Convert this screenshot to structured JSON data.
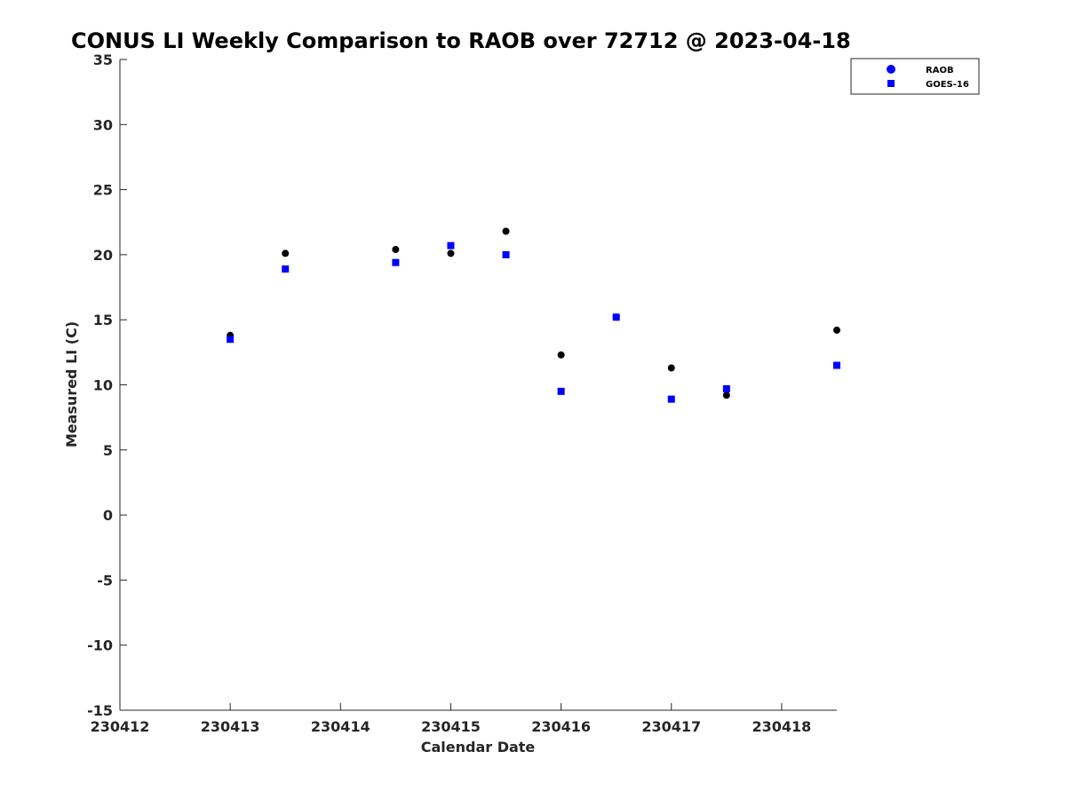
{
  "chart_data": {
    "type": "scatter",
    "title": "CONUS LI Weekly Comparison to RAOB over 72712 @ 2023-04-18",
    "xlabel": "Calendar Date",
    "ylabel": "Measured LI (C)",
    "xlim": [
      230412,
      230418.5
    ],
    "ylim": [
      -15,
      35
    ],
    "x_ticks": [
      230412,
      230413,
      230414,
      230415,
      230416,
      230417,
      230418
    ],
    "x_tick_labels": [
      "230412",
      "230413",
      "230414",
      "230415",
      "230416",
      "230417",
      "230418"
    ],
    "y_ticks": [
      35,
      30,
      25,
      20,
      15,
      10,
      5,
      0,
      -5,
      -10,
      -15
    ],
    "y_tick_labels": [
      "35",
      "30",
      "25",
      "20",
      "15",
      "10",
      "5",
      "0",
      "-5",
      "-10",
      "-15"
    ],
    "grid": false,
    "legend_position": "top-right",
    "series": [
      {
        "name": "RAOB",
        "marker": "circle",
        "color": "#000000",
        "legend_color": "#0000ff",
        "points": [
          {
            "x": 230413.0,
            "y": 13.8
          },
          {
            "x": 230413.5,
            "y": 20.1
          },
          {
            "x": 230414.5,
            "y": 20.4
          },
          {
            "x": 230415.0,
            "y": 20.1
          },
          {
            "x": 230415.5,
            "y": 21.8
          },
          {
            "x": 230416.0,
            "y": 12.3
          },
          {
            "x": 230416.5,
            "y": 15.2
          },
          {
            "x": 230417.0,
            "y": 11.3
          },
          {
            "x": 230417.5,
            "y": 9.2
          },
          {
            "x": 230418.5,
            "y": 14.2
          }
        ]
      },
      {
        "name": "GOES-16",
        "marker": "square",
        "color": "#0000ff",
        "legend_color": "#0000ff",
        "points": [
          {
            "x": 230413.0,
            "y": 13.5
          },
          {
            "x": 230413.5,
            "y": 18.9
          },
          {
            "x": 230414.5,
            "y": 19.4
          },
          {
            "x": 230415.0,
            "y": 20.7
          },
          {
            "x": 230415.5,
            "y": 20.0
          },
          {
            "x": 230416.0,
            "y": 9.5
          },
          {
            "x": 230416.5,
            "y": 15.2
          },
          {
            "x": 230417.0,
            "y": 8.9
          },
          {
            "x": 230417.5,
            "y": 9.7
          },
          {
            "x": 230418.5,
            "y": 11.5
          }
        ]
      }
    ]
  }
}
